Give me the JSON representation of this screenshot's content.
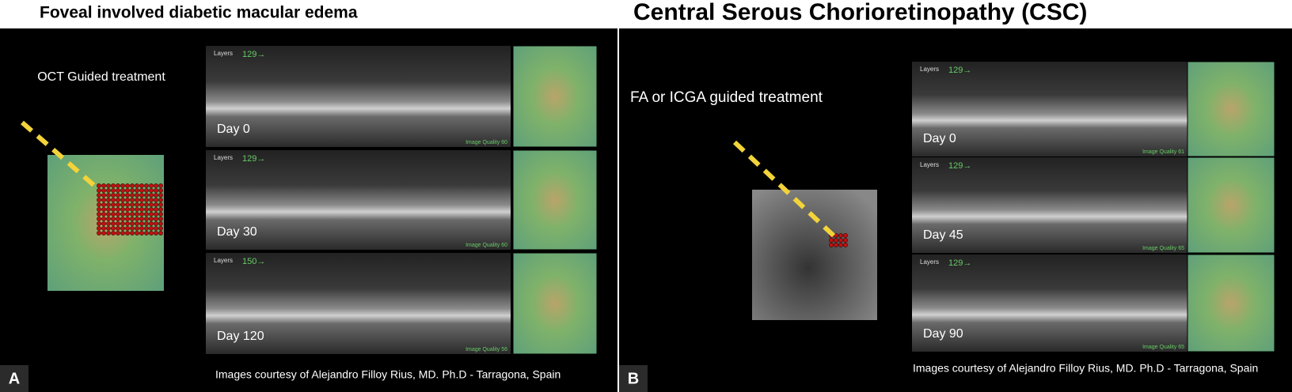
{
  "panels": [
    {
      "title": "Foveal involved diabetic macular edema",
      "label": "A",
      "method": "OCT Guided treatment",
      "scans": [
        {
          "layers": "Layers",
          "scale": "129→",
          "day": "Day 0",
          "quality": "Image Quality 60"
        },
        {
          "layers": "Layers",
          "scale": "129→",
          "day": "Day 30",
          "quality": "Image Quality 60"
        },
        {
          "layers": "Layers",
          "scale": "150→",
          "day": "Day 120",
          "quality": "Image Quality 56"
        }
      ],
      "credit": "Images courtesy of Alejandro Filloy Rius, MD. Ph.D - Tarragona, Spain"
    },
    {
      "title": "Central Serous Chorioretinopathy (CSC)",
      "label": "B",
      "method": "FA or ICGA guided treatment",
      "scans": [
        {
          "layers": "Layers",
          "scale": "129→",
          "day": "Day 0",
          "quality": "Image Quality 61"
        },
        {
          "layers": "Layers",
          "scale": "129→",
          "day": "Day 45",
          "quality": "Image Quality 65"
        },
        {
          "layers": "Layers",
          "scale": "129→",
          "day": "Day 90",
          "quality": "Image Quality 65"
        }
      ],
      "credit": "Images courtesy of Alejandro Filloy Rius, MD. Ph.D - Tarragona, Spain"
    }
  ]
}
